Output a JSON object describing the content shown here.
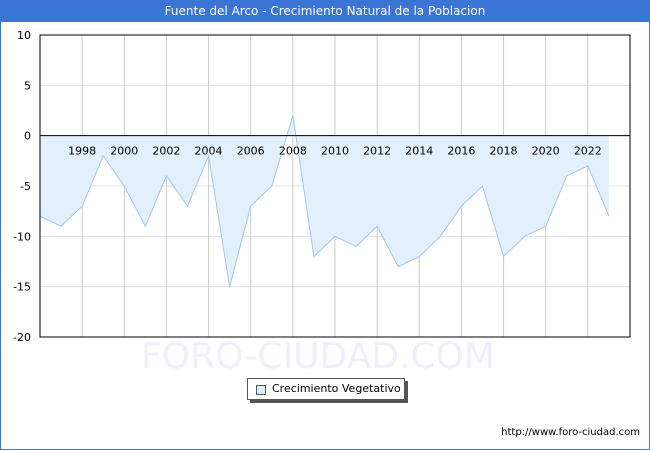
{
  "title": "Fuente del Arco - Crecimiento Natural de la Poblacion",
  "watermark": "FORO-CIUDAD.COM",
  "footer_url": "http://www.foro-ciudad.com",
  "legend": {
    "label": "Crecimiento Vegetativo"
  },
  "colors": {
    "header": "#3a75d6",
    "line": "#a6c4ec",
    "fill": "#e2f0fd"
  },
  "chart_data": {
    "type": "area",
    "title": "Fuente del Arco - Crecimiento Natural de la Poblacion",
    "xlabel": "",
    "ylabel": "",
    "ylim": [
      -20,
      10
    ],
    "yticks": [
      10,
      5,
      0,
      -5,
      -10,
      -15,
      -20
    ],
    "xtick_labels": [
      "1998",
      "2000",
      "2002",
      "2004",
      "2006",
      "2008",
      "2010",
      "2012",
      "2014",
      "2016",
      "2018",
      "2020",
      "2022"
    ],
    "grid": true,
    "legend_position": "bottom",
    "series": [
      {
        "name": "Crecimiento Vegetativo",
        "x": [
          1996,
          1997,
          1998,
          1999,
          2000,
          2001,
          2002,
          2003,
          2004,
          2005,
          2006,
          2007,
          2008,
          2009,
          2010,
          2011,
          2012,
          2013,
          2014,
          2015,
          2016,
          2017,
          2018,
          2019,
          2020,
          2021,
          2022,
          2023
        ],
        "values": [
          -8,
          -9,
          -7,
          -2,
          -5,
          -9,
          -4,
          -7,
          -2,
          -15,
          -7,
          -5,
          2,
          -12,
          -10,
          -11,
          -9,
          -13,
          -12,
          -10,
          -7,
          -5,
          -12,
          -10,
          -9,
          -4,
          -3,
          -8
        ]
      }
    ]
  }
}
